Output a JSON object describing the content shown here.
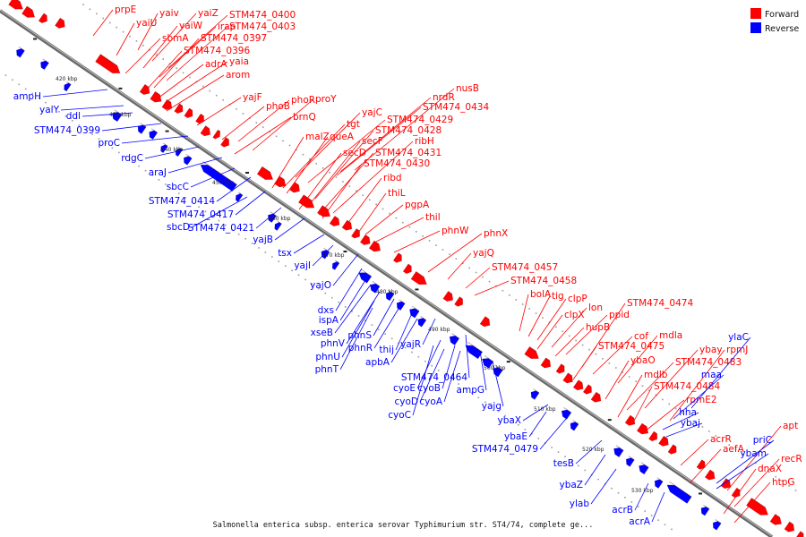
{
  "caption": "Salmonella enterica subsp. enterica serovar Typhimurium str. ST4/74, complete ge...",
  "legend": {
    "items": [
      {
        "label": "Forward",
        "color": "#ff0000"
      },
      {
        "label": "Reverse",
        "color": "#0000ff"
      }
    ]
  },
  "colors": {
    "forward": "#ff0000",
    "reverse": "#0000ff",
    "axis": "#888888"
  },
  "ticks": [
    "420 kbp",
    "430 kbp",
    "440 kbp",
    "450 kbp",
    "460 kbp",
    "470 kbp",
    "480 kbp",
    "490 kbp",
    "500 kbp",
    "510 kbp",
    "520 kbp",
    "530 kbp"
  ],
  "forward_labels": [
    "prpE",
    "yaiv",
    "yaiZ",
    "STM474_0400",
    "yaiU",
    "yaiW",
    "irap",
    "STM474_0403",
    "sbmA",
    "STM474_0397",
    "STM474_0396",
    "yaia",
    "adrA",
    "arom",
    "yajF",
    "phoB",
    "phoR",
    "proY",
    "brnQ",
    "nusB",
    "nrdR",
    "STM474_0434",
    "yajC",
    "STM474_0429",
    "tgt",
    "malZ",
    "queA",
    "STM474_0428",
    "secF",
    "ribH",
    "secD",
    "STM474_0431",
    "STM474_0430",
    "ribd",
    "thiL",
    "pgpA",
    "thil",
    "phnW",
    "phnX",
    "yajQ",
    "STM474_0457",
    "STM474_0458",
    "bolA",
    "tig",
    "clpP",
    "lon",
    "clpX",
    "ppid",
    "hupB",
    "STM474_0474",
    "cof",
    "mdla",
    "STM474_0475",
    "ybaO",
    "ybay",
    "rpmJ",
    "STM474_0483",
    "mdlb",
    "STM474_0484",
    "rpmE2",
    "acrR",
    "apt",
    "aefA",
    "recR",
    "dnaX",
    "htpG"
  ],
  "reverse_labels": [
    "ampH",
    "yaiY",
    "ddl",
    "STM474_0399",
    "proC",
    "rdgC",
    "araJ",
    "sbcC",
    "STM474_0414",
    "STM474_0417",
    "sbcD",
    "STM474_0421",
    "yajB",
    "tsx",
    "yajI",
    "yajO",
    "dxs",
    "ispA",
    "xseB",
    "phnV",
    "phnS",
    "phnR",
    "phnU",
    "phnT",
    "thij",
    "apbA",
    "yajR",
    "STM474_0464",
    "cyoE",
    "cyoB",
    "cyoD",
    "cyoA",
    "cyoC",
    "ampG",
    "yajg",
    "ybaX",
    "ybaE",
    "STM474_0479",
    "tesB",
    "ybaZ",
    "ylab",
    "acrB",
    "acrA",
    "ylaC",
    "maa",
    "hha",
    "ybaj",
    "priC",
    "ybam"
  ]
}
